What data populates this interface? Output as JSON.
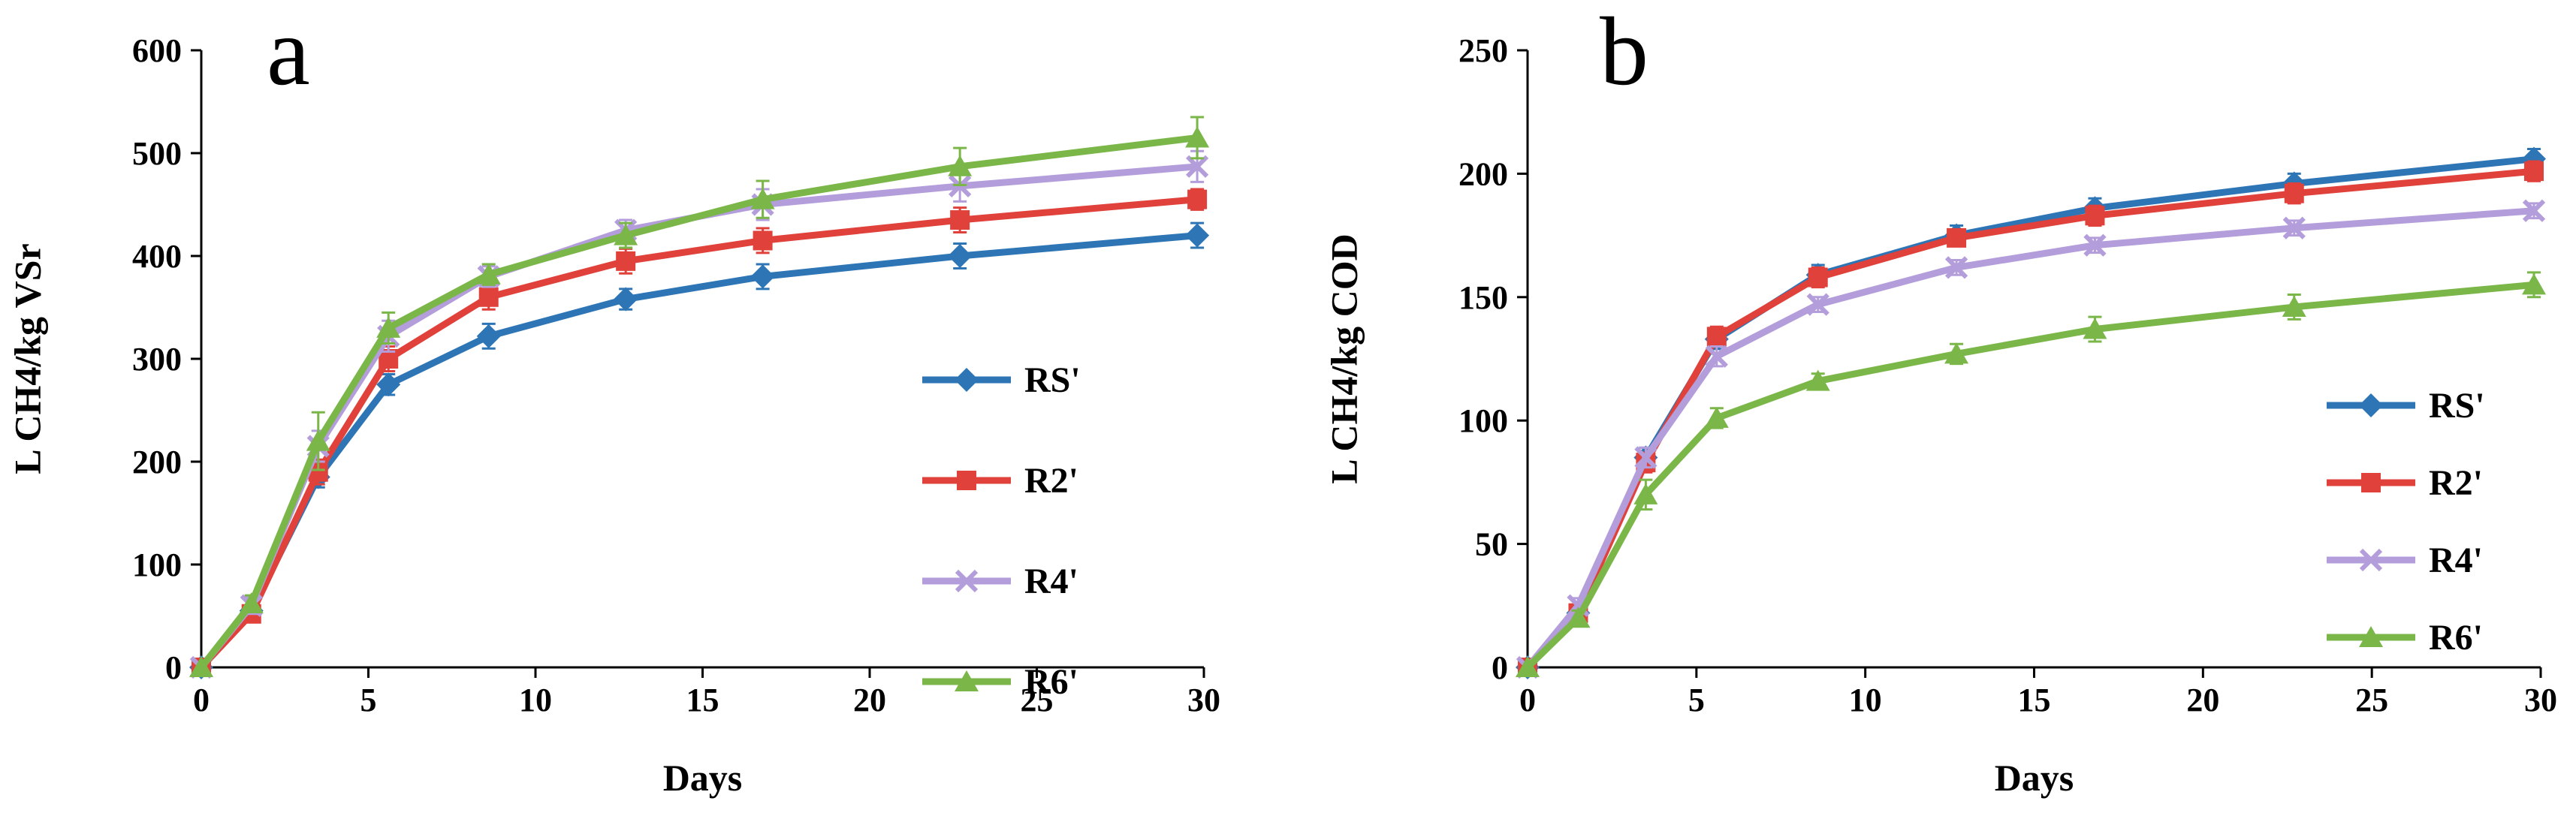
{
  "chart_data": [
    {
      "type": "line",
      "panel_label": "a",
      "xlabel": "Days",
      "ylabel": "L CH4/kg VSr",
      "xlim": [
        0,
        30
      ],
      "ylim": [
        0,
        600
      ],
      "xticks": [
        0,
        5,
        10,
        15,
        20,
        25,
        30
      ],
      "yticks": [
        0,
        100,
        200,
        300,
        400,
        500,
        600
      ],
      "grid": false,
      "legend_position": "center-right",
      "x": [
        0,
        1.5,
        3.5,
        5.6,
        8.6,
        12.7,
        16.8,
        22.7,
        29.8
      ],
      "series": [
        {
          "name": "RS'",
          "color": "#2e75b6",
          "marker": "diamond",
          "values": [
            0,
            55,
            185,
            275,
            322,
            358,
            380,
            400,
            420
          ],
          "errors": [
            0,
            5,
            10,
            10,
            12,
            10,
            12,
            12,
            12
          ]
        },
        {
          "name": "R2'",
          "color": "#e0413a",
          "marker": "square",
          "values": [
            0,
            52,
            190,
            300,
            360,
            395,
            415,
            435,
            455
          ],
          "errors": [
            0,
            5,
            12,
            12,
            12,
            12,
            12,
            12,
            10
          ]
        },
        {
          "name": "R4'",
          "color": "#b39ddb",
          "marker": "x",
          "values": [
            0,
            60,
            215,
            322,
            380,
            425,
            450,
            468,
            487
          ],
          "errors": [
            0,
            8,
            15,
            15,
            10,
            10,
            15,
            15,
            15
          ]
        },
        {
          "name": "R6'",
          "color": "#7ab648",
          "marker": "triangle",
          "values": [
            0,
            62,
            220,
            330,
            382,
            420,
            455,
            487,
            515
          ],
          "errors": [
            0,
            8,
            28,
            15,
            10,
            12,
            18,
            18,
            20
          ]
        }
      ]
    },
    {
      "type": "line",
      "panel_label": "b",
      "xlabel": "Days",
      "ylabel": "L CH4/kg COD",
      "xlim": [
        0,
        30
      ],
      "ylim": [
        0,
        250
      ],
      "xticks": [
        0,
        5,
        10,
        15,
        20,
        25,
        30
      ],
      "yticks": [
        0,
        50,
        100,
        150,
        200,
        250
      ],
      "grid": false,
      "legend_position": "bottom-right",
      "x": [
        0,
        1.5,
        3.5,
        5.6,
        8.6,
        12.7,
        16.8,
        22.7,
        29.8
      ],
      "series": [
        {
          "name": "RS'",
          "color": "#2e75b6",
          "marker": "diamond",
          "values": [
            0,
            22,
            85,
            133,
            159,
            175,
            186,
            196,
            206
          ],
          "errors": [
            0,
            3,
            4,
            4,
            4,
            4,
            4,
            4,
            4
          ]
        },
        {
          "name": "R2'",
          "color": "#e0413a",
          "marker": "square",
          "values": [
            0,
            22,
            83,
            134,
            158,
            174,
            183,
            192,
            201
          ],
          "errors": [
            0,
            3,
            4,
            4,
            4,
            3,
            4,
            4,
            4
          ]
        },
        {
          "name": "R4'",
          "color": "#b39ddb",
          "marker": "x",
          "values": [
            0,
            25,
            85,
            126,
            147,
            162,
            171,
            178,
            185
          ],
          "errors": [
            0,
            3,
            4,
            4,
            3,
            3,
            3,
            3,
            3
          ]
        },
        {
          "name": "R6'",
          "color": "#7ab648",
          "marker": "triangle",
          "values": [
            0,
            20,
            70,
            101,
            116,
            127,
            137,
            146,
            155
          ],
          "errors": [
            0,
            3,
            6,
            4,
            3,
            4,
            5,
            5,
            5
          ]
        }
      ]
    }
  ]
}
